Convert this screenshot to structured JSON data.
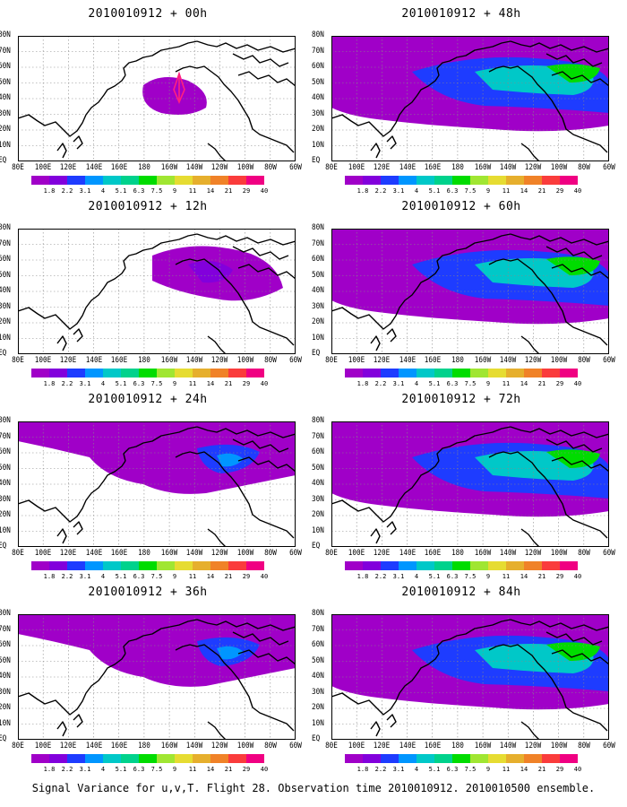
{
  "panels": [
    {
      "title": "2010010912 + 00h",
      "level": 0
    },
    {
      "title": "2010010912 + 48h",
      "level": 3
    },
    {
      "title": "2010010912 + 12h",
      "level": 1
    },
    {
      "title": "2010010912 + 60h",
      "level": 3
    },
    {
      "title": "2010010912 + 24h",
      "level": 2
    },
    {
      "title": "2010010912 + 72h",
      "level": 4
    },
    {
      "title": "2010010912 + 36h",
      "level": 2
    },
    {
      "title": "2010010912 + 84h",
      "level": 4
    }
  ],
  "lat_labels": [
    "80N",
    "70N",
    "60N",
    "50N",
    "40N",
    "30N",
    "20N",
    "10N",
    "EQ"
  ],
  "lon_labels": [
    "80E",
    "100E",
    "120E",
    "140E",
    "160E",
    "180",
    "160W",
    "140W",
    "120W",
    "100W",
    "80W",
    "60W"
  ],
  "colorbar": {
    "labels": [
      "1.8",
      "2.2",
      "3.1",
      "4",
      "5.1",
      "6.3",
      "7.5",
      "9",
      "11",
      "14",
      "21",
      "29",
      "40"
    ],
    "colors": [
      "#a000c8",
      "#8200dc",
      "#1e3cff",
      "#0096ff",
      "#00c8c8",
      "#00d28c",
      "#00dc00",
      "#a0e632",
      "#e6dc32",
      "#e6af2d",
      "#f08228",
      "#fa3c3c",
      "#f00082"
    ]
  },
  "footer": "Signal Variance for u,v,T. Flight 28. Observation time 2010010912. 2010010500 ensemble."
}
